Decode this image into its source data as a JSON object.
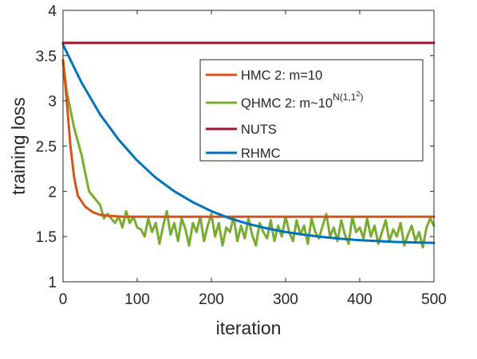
{
  "chart_data": {
    "type": "line",
    "xlabel": "iteration",
    "ylabel": "training loss",
    "xlim": [
      0,
      500
    ],
    "ylim": [
      1,
      4
    ],
    "xticks": [
      0,
      100,
      200,
      300,
      400,
      500
    ],
    "yticks": [
      1,
      1.5,
      2,
      2.5,
      3,
      3.5,
      4
    ],
    "xtick_labels": [
      "0",
      "100",
      "200",
      "300",
      "400",
      "500"
    ],
    "ytick_labels": [
      "1",
      "1.5",
      "2",
      "2.5",
      "3",
      "3.5",
      "4"
    ],
    "grid": false,
    "legend_position": "upper-right",
    "series": [
      {
        "name": "HMC 2: m=10",
        "color": "#D95319",
        "x": [
          0,
          5,
          10,
          15,
          20,
          30,
          40,
          50,
          60,
          80,
          100,
          150,
          200,
          300,
          400,
          500
        ],
        "values": [
          3.45,
          3.0,
          2.5,
          2.15,
          1.95,
          1.83,
          1.77,
          1.74,
          1.73,
          1.72,
          1.72,
          1.72,
          1.72,
          1.72,
          1.72,
          1.72
        ]
      },
      {
        "name": "QHMC 2: m~10",
        "name_superscript": "N(1,1",
        "name_superscript_power": "2",
        "name_superscript_close": ")",
        "color": "#77AC30",
        "x": [
          0,
          5,
          10,
          15,
          20,
          25,
          30,
          35,
          40,
          45,
          50,
          55,
          60,
          65,
          70,
          75,
          80,
          85,
          90,
          95,
          100,
          105,
          110,
          115,
          120,
          125,
          130,
          135,
          140,
          145,
          150,
          155,
          160,
          165,
          170,
          175,
          180,
          185,
          190,
          195,
          200,
          205,
          210,
          215,
          220,
          225,
          230,
          235,
          240,
          245,
          250,
          255,
          260,
          265,
          270,
          275,
          280,
          285,
          290,
          295,
          300,
          305,
          310,
          315,
          320,
          325,
          330,
          335,
          340,
          345,
          350,
          355,
          360,
          365,
          370,
          375,
          380,
          385,
          390,
          395,
          400,
          405,
          410,
          415,
          420,
          425,
          430,
          435,
          440,
          445,
          450,
          455,
          460,
          465,
          470,
          475,
          480,
          485,
          490,
          495,
          500
        ],
        "values": [
          3.45,
          3.1,
          2.9,
          2.7,
          2.55,
          2.4,
          2.2,
          2.0,
          1.95,
          1.9,
          1.85,
          1.7,
          1.75,
          1.7,
          1.65,
          1.72,
          1.6,
          1.78,
          1.65,
          1.72,
          1.6,
          1.58,
          1.5,
          1.7,
          1.55,
          1.65,
          1.42,
          1.62,
          1.78,
          1.52,
          1.65,
          1.45,
          1.7,
          1.58,
          1.4,
          1.65,
          1.55,
          1.72,
          1.45,
          1.62,
          1.75,
          1.5,
          1.65,
          1.4,
          1.6,
          1.55,
          1.72,
          1.45,
          1.62,
          1.48,
          1.7,
          1.52,
          1.4,
          1.65,
          1.55,
          1.48,
          1.68,
          1.45,
          1.62,
          1.5,
          1.72,
          1.55,
          1.45,
          1.68,
          1.52,
          1.62,
          1.42,
          1.7,
          1.55,
          1.48,
          1.62,
          1.75,
          1.5,
          1.6,
          1.45,
          1.68,
          1.52,
          1.42,
          1.72,
          1.55,
          1.6,
          1.48,
          1.7,
          1.5,
          1.62,
          1.42,
          1.55,
          1.68,
          1.45,
          1.58,
          1.5,
          1.65,
          1.4,
          1.52,
          1.62,
          1.45,
          1.55,
          1.38,
          1.6,
          1.7,
          1.62
        ]
      },
      {
        "name": "NUTS",
        "color": "#A2142F",
        "x": [
          0,
          500
        ],
        "values": [
          3.64,
          3.64
        ]
      },
      {
        "name": "RHMC",
        "color": "#0072BD",
        "x": [
          0,
          25,
          50,
          75,
          100,
          125,
          150,
          175,
          200,
          225,
          250,
          275,
          300,
          325,
          350,
          375,
          400,
          425,
          450,
          475,
          500
        ],
        "values": [
          3.62,
          3.2,
          2.85,
          2.57,
          2.34,
          2.15,
          2.0,
          1.88,
          1.78,
          1.7,
          1.64,
          1.59,
          1.55,
          1.52,
          1.495,
          1.475,
          1.46,
          1.45,
          1.44,
          1.435,
          1.43
        ]
      }
    ]
  }
}
